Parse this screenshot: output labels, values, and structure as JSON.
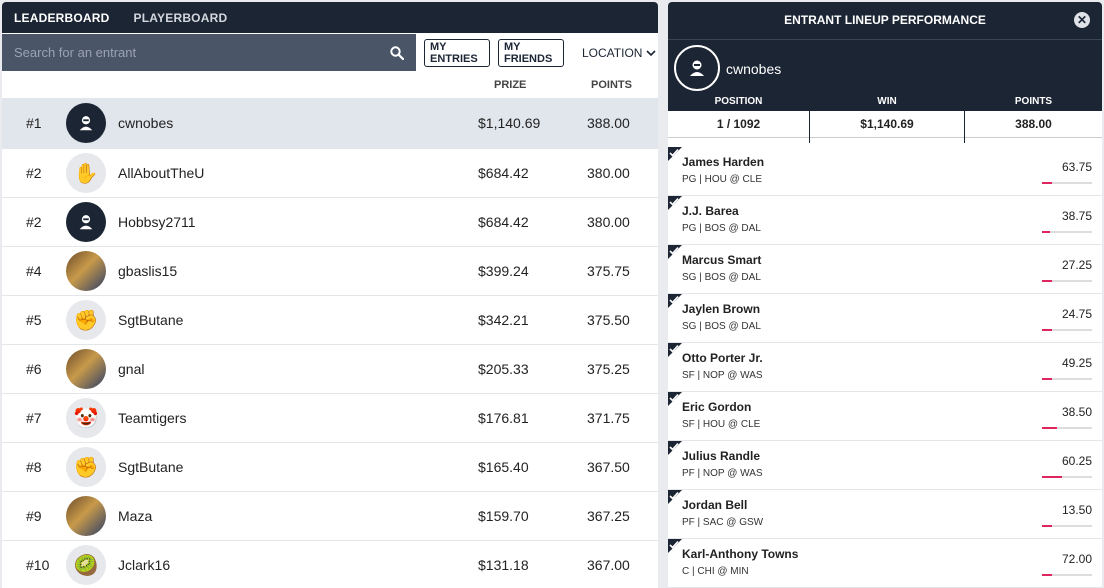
{
  "leaderboard": {
    "tabs": [
      "LEADERBOARD",
      "PLAYERBOARD"
    ],
    "search_placeholder": "Search for an entrant",
    "buttons": {
      "my_entries": "MY ENTRIES",
      "my_friends": "MY FRIENDS",
      "location": "LOCATION"
    },
    "columns": {
      "prize": "PRIZE",
      "points": "POINTS"
    },
    "rows": [
      {
        "rank": "#1",
        "name": "cwnobes",
        "prize": "$1,140.69",
        "points": "388.00",
        "avatar": "default-user-icon"
      },
      {
        "rank": "#2",
        "name": "AllAboutTheU",
        "prize": "$684.42",
        "points": "380.00",
        "avatar": "raised-hand-icon"
      },
      {
        "rank": "#2",
        "name": "Hobbsy2711",
        "prize": "$684.42",
        "points": "380.00",
        "avatar": "default-user-icon"
      },
      {
        "rank": "#4",
        "name": "gbaslis15",
        "prize": "$399.24",
        "points": "375.75",
        "avatar": "photo-avatar"
      },
      {
        "rank": "#5",
        "name": "SgtButane",
        "prize": "$342.21",
        "points": "375.50",
        "avatar": "fist-icon"
      },
      {
        "rank": "#6",
        "name": "gnal",
        "prize": "$205.33",
        "points": "375.25",
        "avatar": "photo-avatar"
      },
      {
        "rank": "#7",
        "name": "Teamtigers",
        "prize": "$176.81",
        "points": "371.75",
        "avatar": "clown-icon"
      },
      {
        "rank": "#8",
        "name": "SgtButane",
        "prize": "$165.40",
        "points": "367.50",
        "avatar": "fist-icon"
      },
      {
        "rank": "#9",
        "name": "Maza",
        "prize": "$159.70",
        "points": "367.25",
        "avatar": "photo-avatar"
      },
      {
        "rank": "#10",
        "name": "Jclark16",
        "prize": "$131.18",
        "points": "367.00",
        "avatar": "kiwi-icon"
      }
    ]
  },
  "lineup": {
    "title": "ENTRANT LINEUP PERFORMANCE",
    "user": "cwnobes",
    "stats": {
      "position_label": "POSITION",
      "position_value": "1 / 1092",
      "win_label": "WIN",
      "win_value": "$1,140.69",
      "points_label": "POINTS",
      "points_value": "388.00"
    },
    "players": [
      {
        "name": "James Harden",
        "info": "PG | HOU @ CLE",
        "points": "63.75",
        "progress": 0.2
      },
      {
        "name": "J.J. Barea",
        "info": "PG | BOS @ DAL",
        "points": "38.75",
        "progress": 0.15
      },
      {
        "name": "Marcus Smart",
        "info": "SG | BOS @ DAL",
        "points": "27.25",
        "progress": 0.2
      },
      {
        "name": "Jaylen Brown",
        "info": "SG | BOS @ DAL",
        "points": "24.75",
        "progress": 0.2
      },
      {
        "name": "Otto Porter Jr.",
        "info": "SF | NOP @ WAS",
        "points": "49.25",
        "progress": 0.2
      },
      {
        "name": "Eric Gordon",
        "info": "SF | HOU @ CLE",
        "points": "38.50",
        "progress": 0.3
      },
      {
        "name": "Julius Randle",
        "info": "PF | NOP @ WAS",
        "points": "60.25",
        "progress": 0.4
      },
      {
        "name": "Jordan Bell",
        "info": "PF | SAC @ GSW",
        "points": "13.50",
        "progress": 0.2
      },
      {
        "name": "Karl-Anthony Towns",
        "info": "C | CHI @ MIN",
        "points": "72.00",
        "progress": 0.2
      }
    ]
  }
}
